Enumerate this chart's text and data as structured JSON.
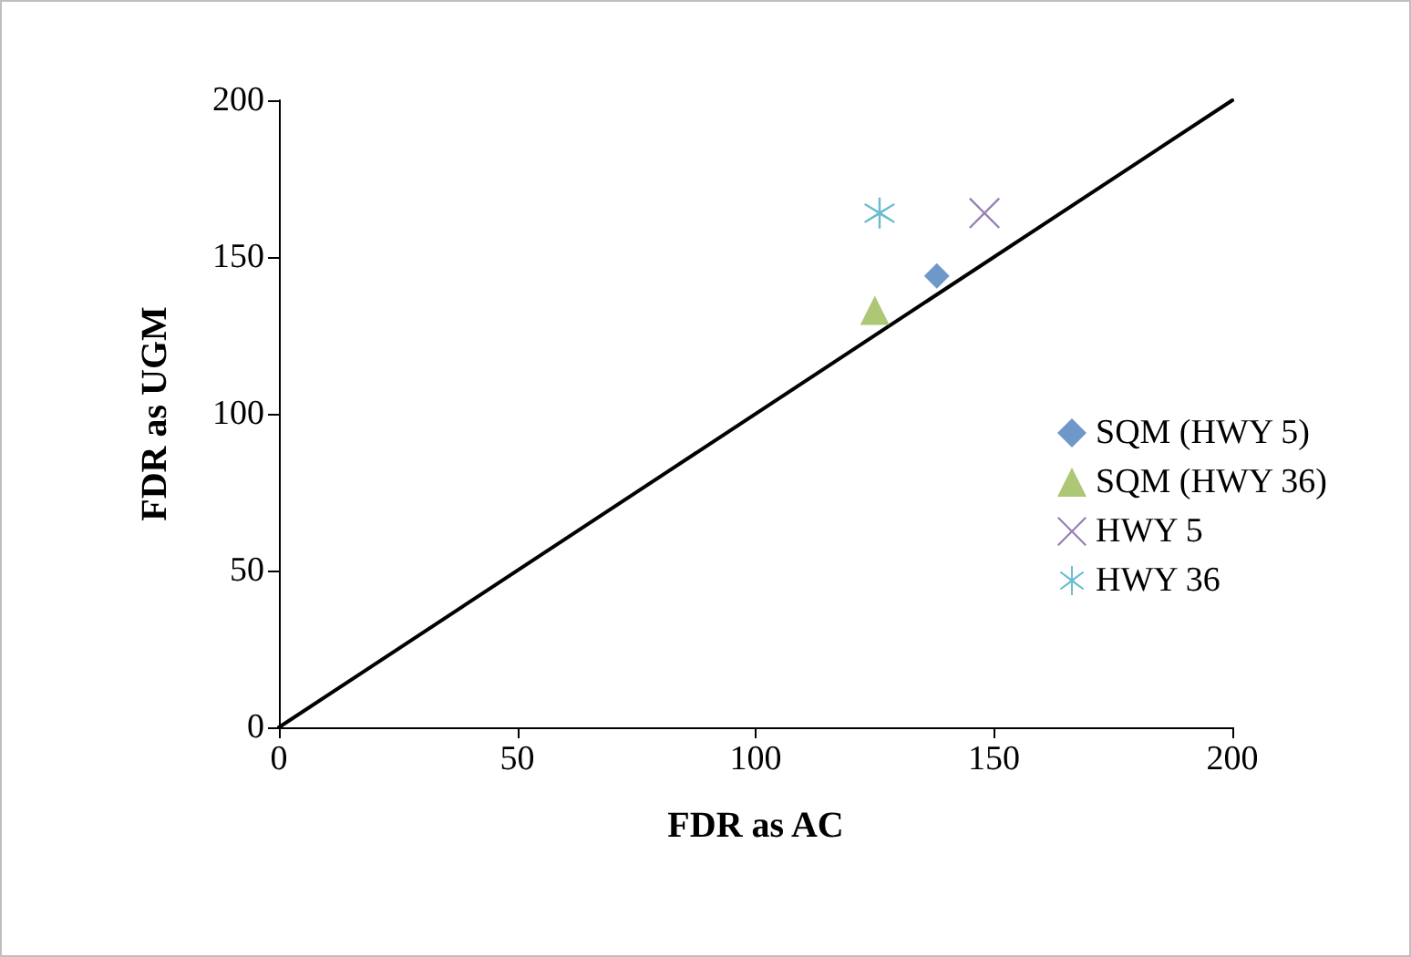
{
  "chart_data": {
    "type": "scatter",
    "xlabel": "FDR as AC",
    "ylabel": "FDR as UGM",
    "xlim": [
      0,
      200
    ],
    "xticks": [
      0,
      50,
      100,
      150,
      200
    ],
    "ylim": [
      0,
      200
    ],
    "yticks": [
      0,
      50,
      100,
      150,
      200
    ],
    "grid": false,
    "legend": "right",
    "series": [
      {
        "name": "SQM (HWY 5)",
        "color": "#4a7ebb",
        "marker": "diamond",
        "x": [
          138
        ],
        "values": [
          144
        ]
      },
      {
        "name": "SQM (HWY 36)",
        "color": "#98b954",
        "marker": "triangle",
        "x": [
          125
        ],
        "values": [
          133
        ]
      },
      {
        "name": "HWY 5",
        "color": "#7d60a0",
        "marker": "cross",
        "x": [
          148
        ],
        "values": [
          164
        ]
      },
      {
        "name": "HWY 36",
        "color": "#46aac5",
        "marker": "star",
        "x": [
          126
        ],
        "values": [
          164
        ]
      },
      {
        "type": "line",
        "color": "#000000",
        "marker": "none",
        "x": [
          0,
          200
        ],
        "values": [
          0,
          200
        ]
      }
    ]
  }
}
